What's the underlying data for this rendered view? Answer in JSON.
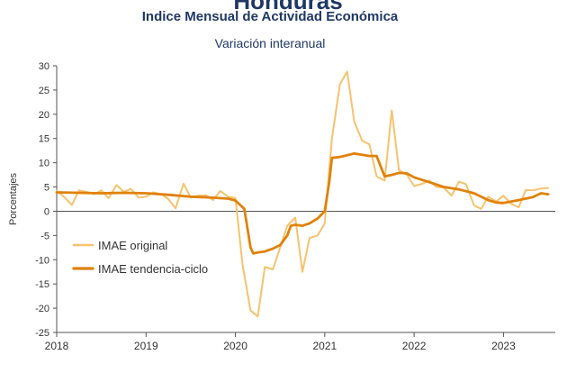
{
  "top_title": "Honduras",
  "chart_data": {
    "type": "line",
    "title": "Indice Mensual de  Actividad Económica",
    "subtitle": "Variación interanual",
    "ylabel": "Porcentajes",
    "ylim": [
      -25,
      30
    ],
    "yticks": [
      30,
      25,
      20,
      15,
      10,
      5,
      0,
      -5,
      -10,
      -15,
      -20,
      -25
    ],
    "xlim": [
      2018,
      2023.58
    ],
    "xticks": [
      "2018",
      "2019",
      "2020",
      "2021",
      "2022",
      "2023"
    ],
    "legend": "inside-left-lower",
    "grid": false,
    "colors": {
      "original": "#f7c26e",
      "trend": "#e0820a",
      "axis": "#555555"
    },
    "series": [
      {
        "name": "IMAE original",
        "x": [
          2018.0,
          2018.08,
          2018.17,
          2018.25,
          2018.33,
          2018.42,
          2018.5,
          2018.58,
          2018.67,
          2018.75,
          2018.83,
          2018.92,
          2019.0,
          2019.08,
          2019.17,
          2019.25,
          2019.33,
          2019.42,
          2019.5,
          2019.58,
          2019.67,
          2019.75,
          2019.83,
          2019.92,
          2020.0,
          2020.08,
          2020.17,
          2020.25,
          2020.33,
          2020.42,
          2020.5,
          2020.58,
          2020.67,
          2020.75,
          2020.83,
          2020.92,
          2021.0,
          2021.08,
          2021.17,
          2021.25,
          2021.33,
          2021.42,
          2021.5,
          2021.58,
          2021.67,
          2021.75,
          2021.83,
          2021.92,
          2022.0,
          2022.08,
          2022.17,
          2022.25,
          2022.33,
          2022.42,
          2022.5,
          2022.58,
          2022.67,
          2022.75,
          2022.83,
          2022.92,
          2023.0,
          2023.08,
          2023.17,
          2023.25,
          2023.33,
          2023.42,
          2023.5
        ],
        "y": [
          4.2,
          3.0,
          1.3,
          4.3,
          4.0,
          3.5,
          4.3,
          2.7,
          5.4,
          4.0,
          4.6,
          2.8,
          3.0,
          3.9,
          3.5,
          2.5,
          0.6,
          5.7,
          2.8,
          3.2,
          3.3,
          2.3,
          4.2,
          3.0,
          2.7,
          -11.0,
          -20.5,
          -21.7,
          -11.5,
          -12.0,
          -7.5,
          -3.0,
          -1.3,
          -12.5,
          -5.5,
          -5.0,
          -2.5,
          15.0,
          26.2,
          28.8,
          18.5,
          14.5,
          13.8,
          7.2,
          6.3,
          20.8,
          8.5,
          7.5,
          5.2,
          5.6,
          6.3,
          5.0,
          4.9,
          3.2,
          6.1,
          5.6,
          1.2,
          0.5,
          3.0,
          2.0,
          3.2,
          1.6,
          0.8,
          4.4,
          4.3,
          4.7,
          4.8
        ]
      },
      {
        "name": "IMAE tendencia-ciclo",
        "x": [
          2018.0,
          2018.25,
          2018.5,
          2018.75,
          2019.0,
          2019.25,
          2019.5,
          2019.75,
          2019.92,
          2020.0,
          2020.1,
          2020.17,
          2020.2,
          2020.25,
          2020.33,
          2020.42,
          2020.5,
          2020.58,
          2020.62,
          2020.67,
          2020.75,
          2020.83,
          2020.92,
          2021.0,
          2021.05,
          2021.08,
          2021.17,
          2021.33,
          2021.5,
          2021.58,
          2021.67,
          2021.75,
          2021.83,
          2021.92,
          2022.0,
          2022.17,
          2022.33,
          2022.5,
          2022.67,
          2022.83,
          2022.92,
          2023.0,
          2023.17,
          2023.33,
          2023.42,
          2023.5
        ],
        "y": [
          3.9,
          3.8,
          3.7,
          3.8,
          3.7,
          3.4,
          3.0,
          2.8,
          2.6,
          2.2,
          0.5,
          -7.5,
          -8.7,
          -8.5,
          -8.3,
          -7.7,
          -7.0,
          -5.0,
          -3.0,
          -2.8,
          -3.0,
          -2.5,
          -1.5,
          0.0,
          6.0,
          11.0,
          11.2,
          11.9,
          11.4,
          11.4,
          7.2,
          7.5,
          7.9,
          7.8,
          7.0,
          6.0,
          5.0,
          4.5,
          3.7,
          2.3,
          1.8,
          1.7,
          2.3,
          2.9,
          3.7,
          3.5
        ]
      }
    ]
  }
}
